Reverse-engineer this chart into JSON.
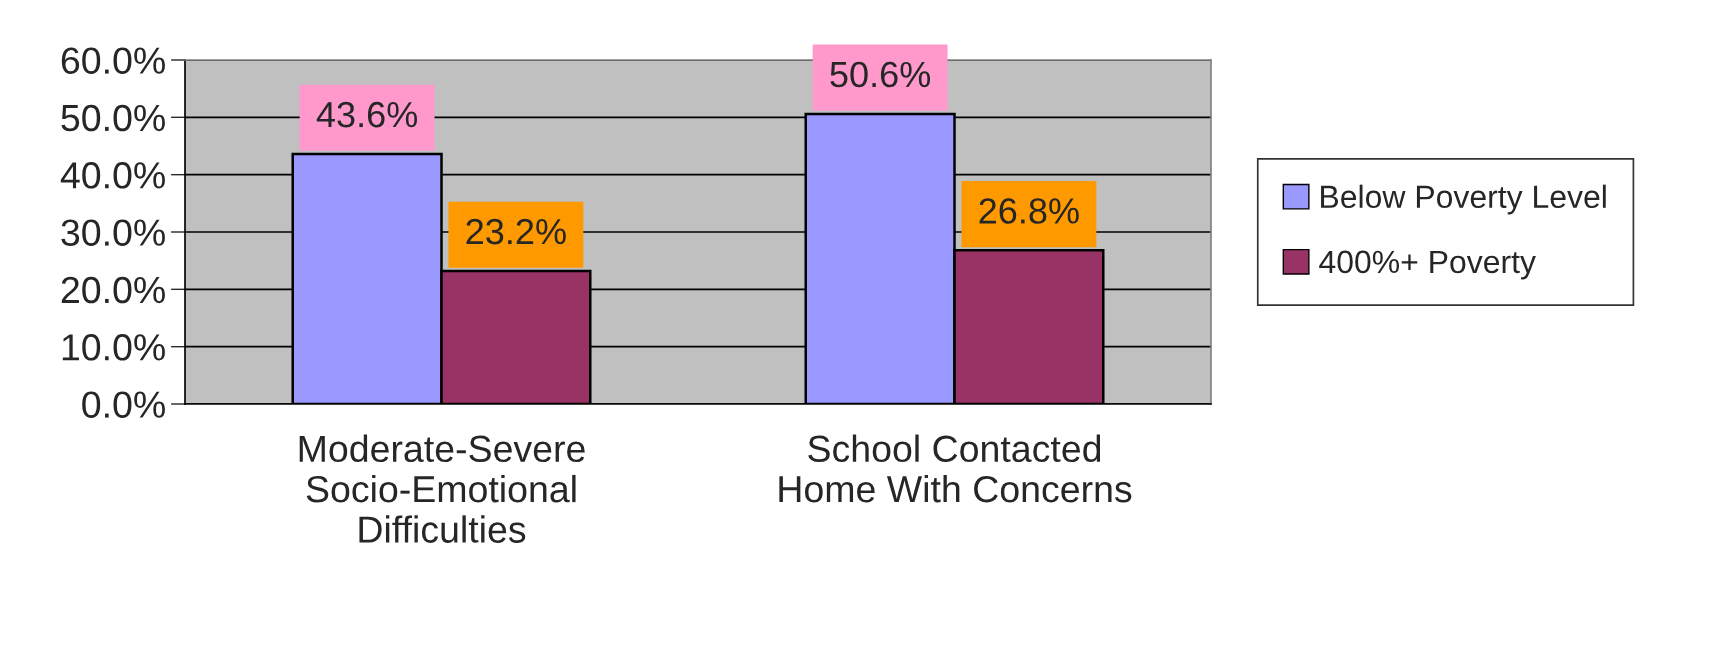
{
  "chart_data": {
    "type": "bar",
    "categories": [
      "Moderate-Severe\nSocio-Emotional\nDifficulties",
      "School Contacted\nHome With Concerns"
    ],
    "series": [
      {
        "name": "Below Poverty Level",
        "color": "#9999ff",
        "values": [
          43.6,
          50.6
        ],
        "value_labels": [
          "43.6%",
          "50.6%"
        ]
      },
      {
        "name": "400%+ Poverty",
        "color": "#993366",
        "values": [
          23.2,
          26.8
        ],
        "value_labels": [
          "23.2%",
          "26.8%"
        ]
      }
    ],
    "ylim": [
      0,
      60
    ],
    "yticks": [
      {
        "value": 0,
        "label": "0.0%"
      },
      {
        "value": 10,
        "label": "10.0%"
      },
      {
        "value": 20,
        "label": "20.0%"
      },
      {
        "value": 30,
        "label": "30.0%"
      },
      {
        "value": 40,
        "label": "40.0%"
      },
      {
        "value": 50,
        "label": "50.0%"
      },
      {
        "value": 60,
        "label": "60.0%"
      }
    ],
    "grid": "y",
    "legend": "right"
  }
}
